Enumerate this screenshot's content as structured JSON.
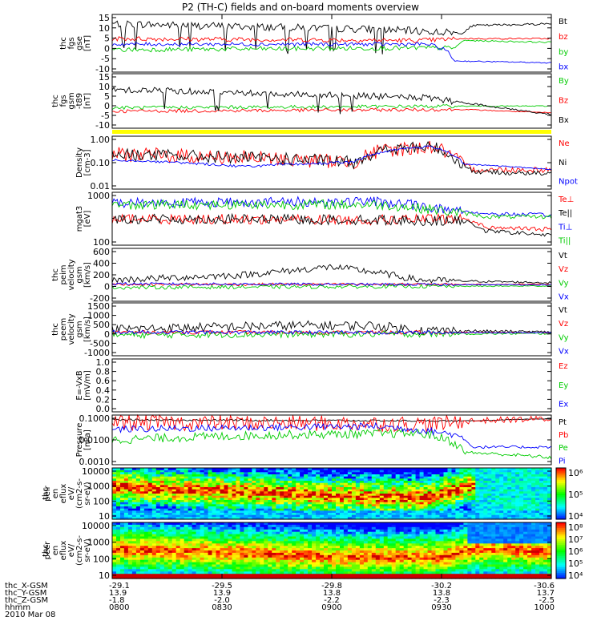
{
  "chart_data": {
    "type": "line",
    "title": "P2 (TH-C) fields and on-board moments overview",
    "panels": [
      {
        "id": "fgs",
        "ylabel": [
          "thc",
          "fgs",
          "gse",
          "[nT]"
        ],
        "yticks": [
          "15",
          "10",
          "5",
          "0",
          "-5",
          "-10"
        ],
        "ylim": [
          -15,
          16
        ],
        "series": [
          {
            "name": "Bt",
            "color": "#000000"
          },
          {
            "name": "bz",
            "color": "#ff0000"
          },
          {
            "name": "by",
            "color": "#00cc00"
          },
          {
            "name": "bx",
            "color": "#0000ff"
          }
        ]
      },
      {
        "id": "fgs_gsm",
        "ylabel": [
          "thc",
          "fgs",
          "gsm",
          "-t89",
          "[nT]"
        ],
        "yticks": [
          "15",
          "10",
          "5",
          "0",
          "-5",
          "-10"
        ],
        "ylim": [
          -12,
          20
        ],
        "series": [
          {
            "name": "By",
            "color": "#00cc00"
          },
          {
            "name": "Bz",
            "color": "#ff0000"
          },
          {
            "name": "Bx",
            "color": "#000000"
          }
        ]
      },
      {
        "id": "density",
        "ylabel": [
          "Density",
          "[cm-3]"
        ],
        "yticks": [
          "1.00",
          "0.10",
          "0.01"
        ],
        "log": true,
        "ylim": [
          0.01,
          1.3
        ],
        "series": [
          {
            "name": "Ne",
            "color": "#ff0000"
          },
          {
            "name": "Ni",
            "color": "#000000"
          },
          {
            "name": "Npot",
            "color": "#0000ff"
          }
        ]
      },
      {
        "id": "temp",
        "ylabel": [
          "mgat3",
          "[eV]"
        ],
        "yticks": [
          "1000",
          "100"
        ],
        "log": true,
        "ylim": [
          20,
          8000
        ],
        "series": [
          {
            "name": "Te⊥",
            "color": "#ff0000"
          },
          {
            "name": "Te||",
            "color": "#000000"
          },
          {
            "name": "Ti⊥",
            "color": "#0000ff"
          },
          {
            "name": "Ti||",
            "color": "#00cc00"
          }
        ]
      },
      {
        "id": "peim",
        "ylabel": [
          "thc",
          "peim",
          "velocity",
          "gsm",
          "[km/s]"
        ],
        "yticks": [
          "600",
          "400",
          "200",
          "0",
          "-200"
        ],
        "ylim": [
          -300,
          700
        ],
        "series": [
          {
            "name": "Vt",
            "color": "#000000"
          },
          {
            "name": "Vz",
            "color": "#ff0000"
          },
          {
            "name": "Vy",
            "color": "#00cc00"
          },
          {
            "name": "Vx",
            "color": "#0000ff"
          }
        ]
      },
      {
        "id": "peem",
        "ylabel": [
          "thc",
          "peem",
          "velocity",
          "gsm",
          "[km/s]"
        ],
        "yticks": [
          "1500",
          "1000",
          "500",
          "0",
          "-500",
          "-1000"
        ],
        "ylim": [
          -1200,
          1600
        ],
        "series": [
          {
            "name": "Vt",
            "color": "#000000"
          },
          {
            "name": "Vz",
            "color": "#ff0000"
          },
          {
            "name": "Vy",
            "color": "#00cc00"
          },
          {
            "name": "Vx",
            "color": "#0000ff"
          }
        ]
      },
      {
        "id": "efield",
        "ylabel": [
          "E=-VxB",
          "[mV/m]"
        ],
        "yticks": [
          "1.0",
          "0.8",
          "0.6",
          "0.4",
          "0.2",
          "0.0"
        ],
        "ylim": [
          0,
          1
        ],
        "series": [
          {
            "name": "Ez",
            "color": "#ff0000"
          },
          {
            "name": "Ey",
            "color": "#00cc00"
          },
          {
            "name": "Ex",
            "color": "#0000ff"
          }
        ]
      },
      {
        "id": "pressure",
        "ylabel": [
          "Pressure",
          "[nPa]"
        ],
        "yticks": [
          "0.1000",
          "0.0100",
          "0.0010"
        ],
        "log": true,
        "ylim": [
          0.0002,
          0.13
        ],
        "series": [
          {
            "name": "Pt",
            "color": "#000000"
          },
          {
            "name": "Pb",
            "color": "#ff0000"
          },
          {
            "name": "Pe",
            "color": "#00cc00"
          },
          {
            "name": "Pi",
            "color": "#0000ff"
          }
        ]
      },
      {
        "id": "peir_eflux",
        "type": "heatmap",
        "ylabel": [
          "thc",
          "peir",
          "en",
          "eflux",
          "eV/",
          "(cm2-s-",
          "sr-eV)"
        ],
        "yticks": [
          "10000",
          "1000",
          "100",
          "10"
        ],
        "colorbar": {
          "labels": [
            "10⁶",
            "10⁵",
            "10⁴"
          ]
        }
      },
      {
        "id": "peer_eflux",
        "type": "heatmap",
        "ylabel": [
          "thc",
          "peer",
          "en",
          "eflux",
          "eV/",
          "(cm2-s-",
          "sr-eV)"
        ],
        "yticks": [
          "10000",
          "1000",
          "100",
          "10"
        ],
        "colorbar": {
          "labels": [
            "10⁸",
            "10⁷",
            "10⁶",
            "10⁵",
            "10⁴"
          ]
        }
      }
    ],
    "x_axis": {
      "rows": [
        {
          "label": "thc_X-GSM",
          "values": [
            "-29.1",
            "-29.5",
            "-29.8",
            "-30.2",
            "-30.6"
          ]
        },
        {
          "label": "thc_Y-GSM",
          "values": [
            "13.9",
            "13.9",
            "13.8",
            "13.8",
            "13.7"
          ]
        },
        {
          "label": "thc_Z-GSM",
          "values": [
            "-1.8",
            "-2.0",
            "-2.2",
            "-2.3",
            "-2.5"
          ]
        },
        {
          "label": "hhmm",
          "values": [
            "0800",
            "0830",
            "0900",
            "0930",
            "1000"
          ]
        }
      ],
      "date": "2010 Mar 08"
    }
  }
}
